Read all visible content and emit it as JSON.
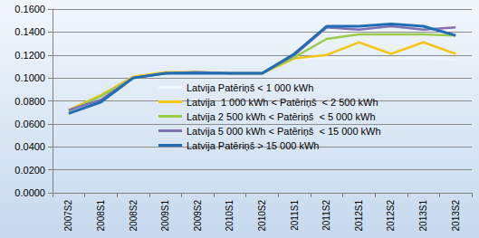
{
  "chart_data": {
    "type": "line",
    "categories": [
      "2007S2",
      "2008S1",
      "2008S2",
      "2009S1",
      "2009S2",
      "2010S1",
      "2010S2",
      "2011S1",
      "2011S2",
      "2012S1",
      "2012S2",
      "2013S1",
      "2013S2"
    ],
    "series": [
      {
        "name": "Latvija Patēriņš < 1 000 kWh",
        "color": "#eef6ff",
        "values": [
          0.071,
          0.083,
          0.1,
          0.104,
          0.104,
          0.104,
          0.104,
          0.117,
          0.117,
          0.117,
          0.117,
          0.117,
          0.116
        ]
      },
      {
        "name": "Latvija  1 000 kWh < Patēriņš  < 2 500 kWh",
        "color": "#f5c518",
        "values": [
          0.072,
          0.085,
          0.101,
          0.105,
          0.105,
          0.104,
          0.104,
          0.117,
          0.12,
          0.131,
          0.121,
          0.131,
          0.121
        ]
      },
      {
        "name": "Latvija 2 500 kWh < Patēriņš  < 5 000 kWh",
        "color": "#9bcb4a",
        "values": [
          0.071,
          0.084,
          0.1,
          0.104,
          0.105,
          0.104,
          0.104,
          0.118,
          0.134,
          0.138,
          0.138,
          0.138,
          0.137
        ]
      },
      {
        "name": "Latvija 5 000 kWh < Patēriņš  < 15 000 kWh",
        "color": "#8070b4",
        "values": [
          0.072,
          0.081,
          0.1,
          0.104,
          0.105,
          0.104,
          0.104,
          0.12,
          0.144,
          0.142,
          0.145,
          0.142,
          0.144
        ]
      },
      {
        "name": "Latvija Patēriņš > 15 000 kWh",
        "color": "#1f6db5",
        "values": [
          0.069,
          0.079,
          0.1,
          0.104,
          0.104,
          0.104,
          0.104,
          0.121,
          0.145,
          0.145,
          0.147,
          0.145,
          0.137
        ]
      }
    ],
    "ylim": [
      0,
      0.16
    ],
    "yticks": [
      {
        "value": 0,
        "label": "0.0000"
      },
      {
        "value": 0.02,
        "label": "0.0200"
      },
      {
        "value": 0.04,
        "label": "0.0400"
      },
      {
        "value": 0.06,
        "label": "0.0600"
      },
      {
        "value": 0.08,
        "label": "0.0800"
      },
      {
        "value": 0.1,
        "label": "0.1000"
      },
      {
        "value": 0.12,
        "label": "0.1200"
      },
      {
        "value": 0.14,
        "label": "0.1400"
      },
      {
        "value": 0.16,
        "label": "0.1600"
      }
    ],
    "grid": true,
    "legend": "right"
  }
}
